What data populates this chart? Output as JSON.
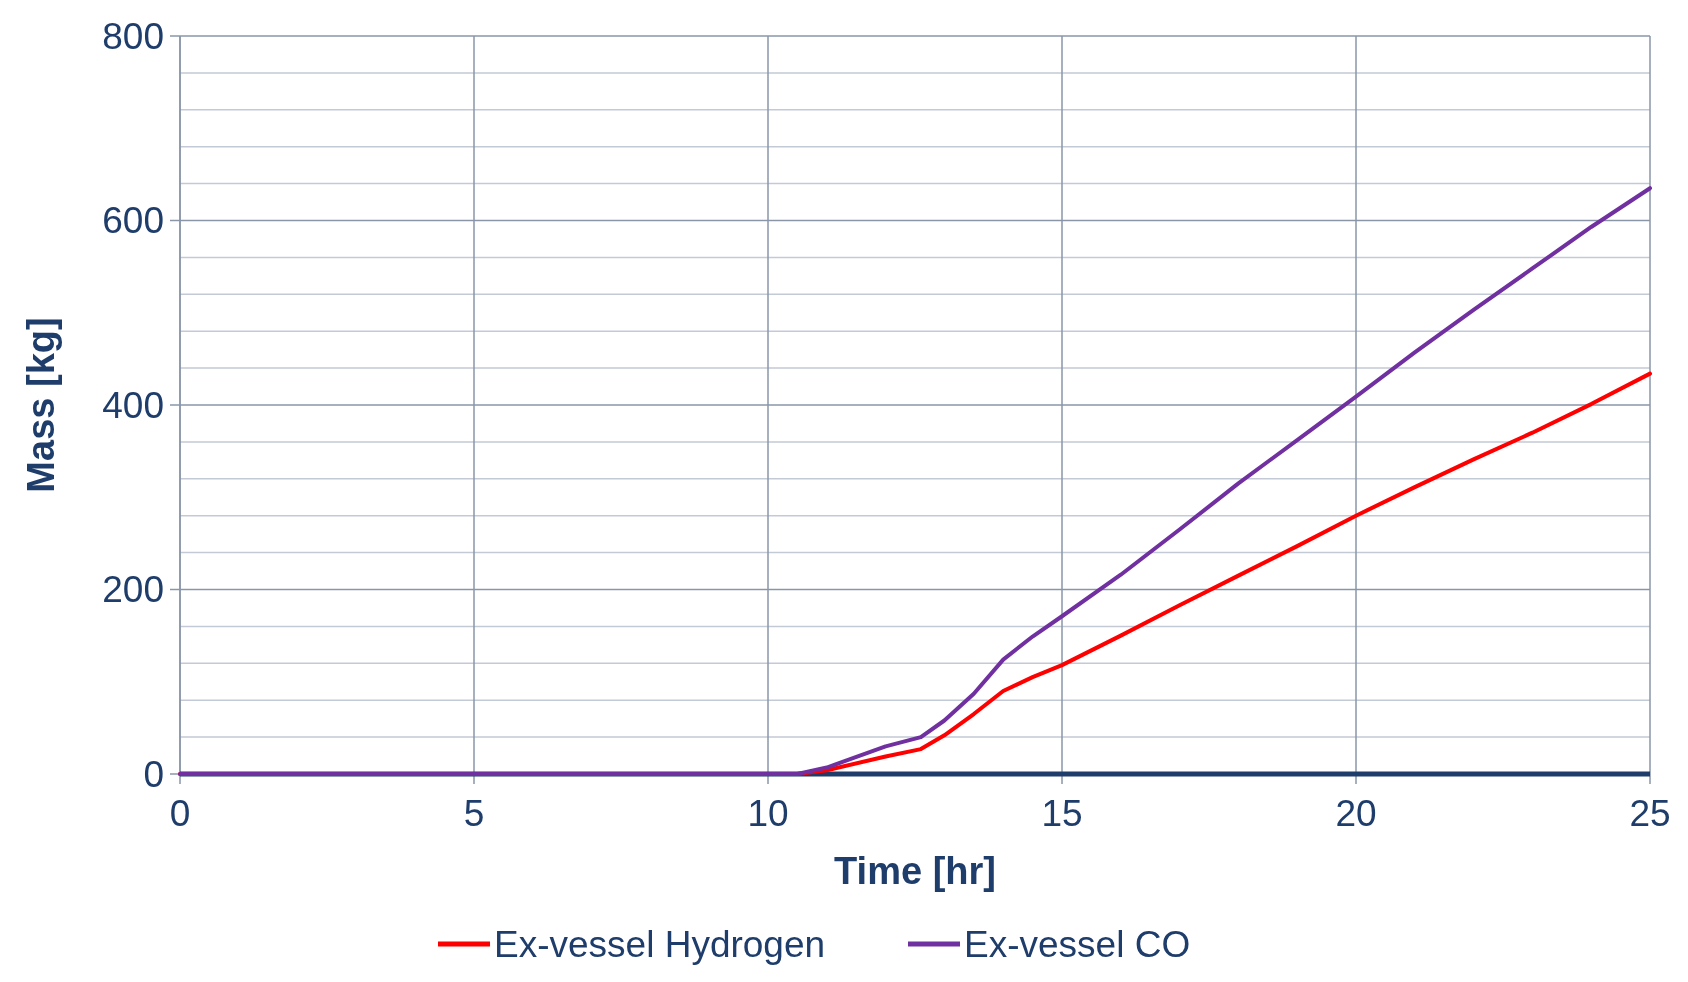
{
  "chart_data": {
    "type": "line",
    "xlabel": "Time [hr]",
    "ylabel": "Mass [kg]",
    "xlim": [
      0,
      25
    ],
    "xticks": [
      0,
      5,
      10,
      15,
      20,
      25
    ],
    "ylim": [
      0,
      800
    ],
    "yticks": [
      0,
      200,
      400,
      600,
      800
    ],
    "grid": true,
    "legend": "bottom",
    "line_style": "solid",
    "x": [
      0,
      10.5,
      11,
      12,
      12.6,
      13,
      13.5,
      14,
      14.5,
      15,
      16,
      17,
      18,
      19,
      20,
      21,
      22,
      23,
      24,
      25
    ],
    "series": [
      {
        "name": "Ex-vessel Hydrogen",
        "color": "#ff0000",
        "values": [
          0,
          0,
          4,
          19,
          27,
          42,
          65,
          90,
          105,
          118,
          150,
          183,
          215,
          247,
          280,
          311,
          341,
          370,
          401,
          434
        ]
      },
      {
        "name": "Ex-vessel CO",
        "color": "#7030a0",
        "values": [
          0,
          0,
          7,
          30,
          40,
          58,
          87,
          124,
          149,
          171,
          216,
          265,
          315,
          362,
          409,
          457,
          503,
          548,
          593,
          635
        ]
      }
    ]
  }
}
